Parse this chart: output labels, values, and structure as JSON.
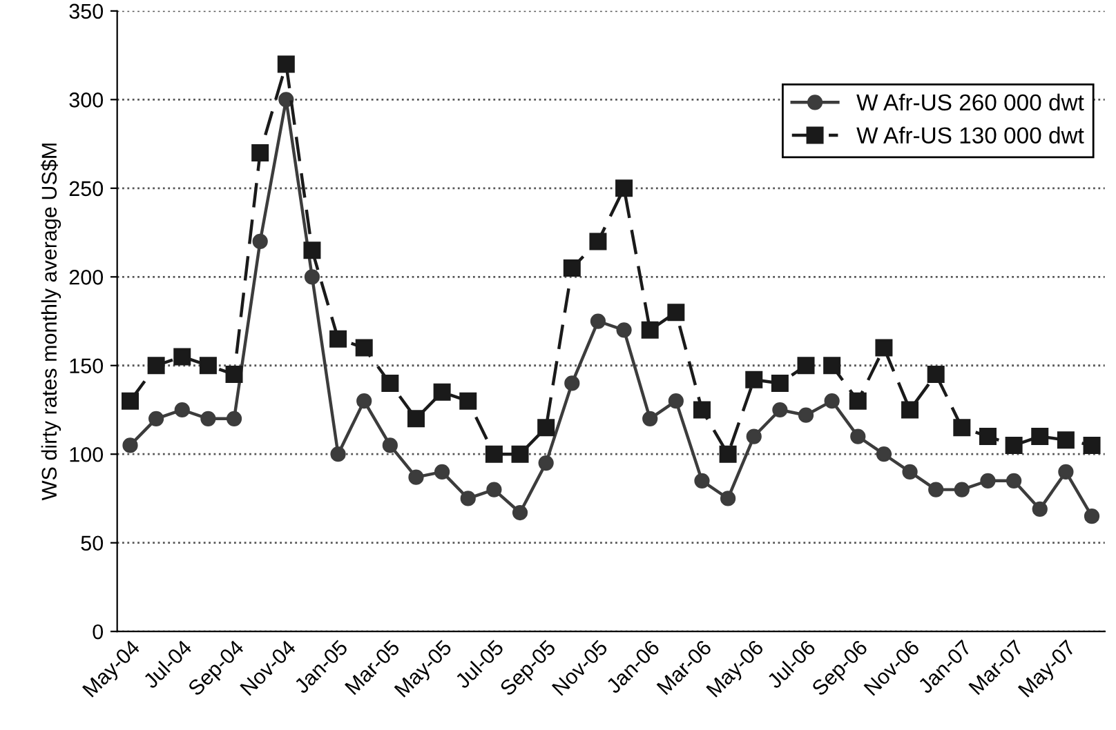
{
  "chart_data": {
    "type": "line",
    "ylabel": "WS dirty rates monthly average US$M",
    "categories": [
      "May-04",
      null,
      "Jul-04",
      null,
      "Sep-04",
      null,
      "Nov-04",
      null,
      "Jan-05",
      null,
      "Mar-05",
      null,
      "May-05",
      null,
      "Jul-05",
      null,
      "Sep-05",
      null,
      "Nov-05",
      null,
      "Jan-06",
      null,
      "Mar-06",
      null,
      "May-06",
      null,
      "Jul-06",
      null,
      "Sep-06",
      null,
      "Nov-06",
      null,
      "Jan-07",
      null,
      "Mar-07",
      null,
      "May-07",
      null
    ],
    "series": [
      {
        "name": "W Afr-US 260 000 dwt",
        "color": "#3c3c3c",
        "marker": "circle",
        "line_style": "solid",
        "values": [
          105,
          120,
          125,
          120,
          120,
          220,
          300,
          200,
          100,
          130,
          105,
          87,
          90,
          75,
          80,
          67,
          95,
          140,
          175,
          170,
          120,
          130,
          85,
          75,
          110,
          125,
          122,
          130,
          110,
          100,
          90,
          80,
          80,
          85,
          85,
          69,
          90,
          65
        ]
      },
      {
        "name": "W Afr-US 130 000 dwt",
        "color": "#1a1a1a",
        "marker": "square",
        "line_style": "dashed",
        "values": [
          130,
          150,
          155,
          150,
          145,
          270,
          320,
          215,
          165,
          160,
          140,
          120,
          135,
          130,
          100,
          100,
          115,
          205,
          220,
          250,
          170,
          180,
          125,
          100,
          142,
          140,
          150,
          150,
          130,
          160,
          125,
          145,
          115,
          110,
          105,
          110,
          108,
          105
        ]
      }
    ],
    "ylim": [
      0,
      350
    ],
    "yticks": [
      0,
      50,
      100,
      150,
      200,
      250,
      300,
      350
    ],
    "grid": "y",
    "legend": "top right"
  }
}
